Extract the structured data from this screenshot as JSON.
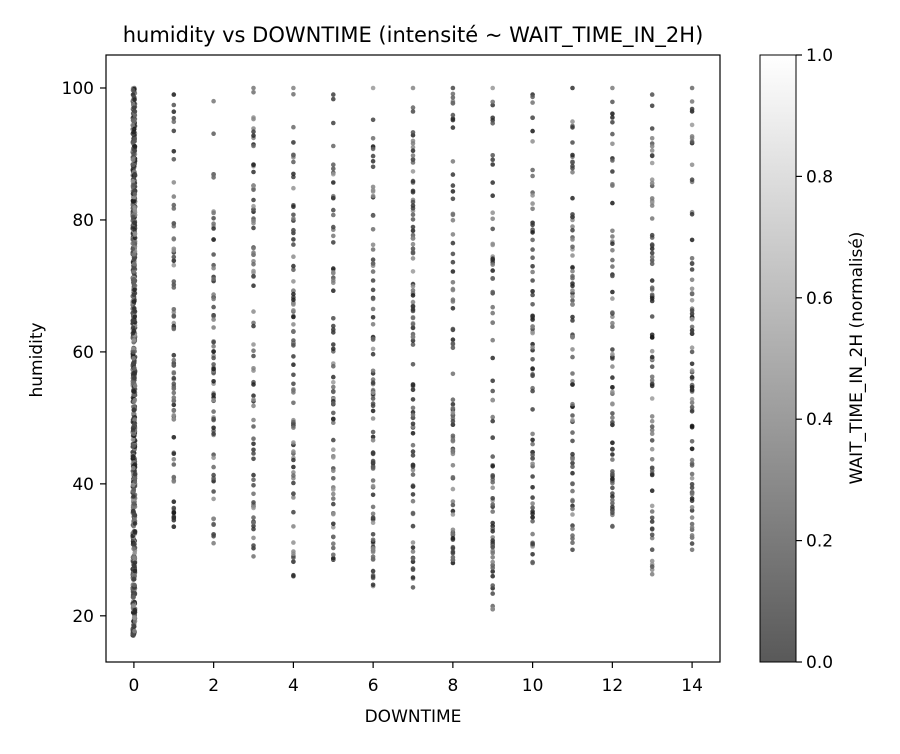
{
  "chart_data": {
    "type": "scatter",
    "title": "humidity vs DOWNTIME (intensité ~ WAIT_TIME_IN_2H)",
    "xlabel": "DOWNTIME",
    "ylabel": "humidity",
    "xlim": [
      -0.7,
      14.7
    ],
    "ylim": [
      13,
      105
    ],
    "xticks": [
      "0",
      "2",
      "4",
      "6",
      "8",
      "10",
      "12",
      "14"
    ],
    "yticks": [
      "20",
      "40",
      "60",
      "80",
      "100"
    ],
    "grid": false,
    "point_color_map": "grayscale (#555555 → #ffffff)",
    "colorbar": {
      "label": "WAIT_TIME_IN_2H (normalisé)",
      "range": [
        0.0,
        1.0
      ],
      "ticks": [
        "0.0",
        "0.2",
        "0.4",
        "0.6",
        "0.8",
        "1.0"
      ]
    },
    "series": [
      {
        "x": 0,
        "y_min": 17,
        "y_max": 100,
        "points": 900
      },
      {
        "x": 1,
        "y_min": 33.5,
        "y_max": 99,
        "points": 80
      },
      {
        "x": 2,
        "y_min": 31,
        "y_max": 98,
        "points": 75
      },
      {
        "x": 3,
        "y_min": 29,
        "y_max": 100,
        "points": 80
      },
      {
        "x": 4,
        "y_min": 26,
        "y_max": 100,
        "points": 85
      },
      {
        "x": 5,
        "y_min": 28.5,
        "y_max": 99,
        "points": 75
      },
      {
        "x": 6,
        "y_min": 24.5,
        "y_max": 100,
        "points": 95
      },
      {
        "x": 7,
        "y_min": 24.3,
        "y_max": 100,
        "points": 100
      },
      {
        "x": 8,
        "y_min": 28,
        "y_max": 100,
        "points": 80
      },
      {
        "x": 9,
        "y_min": 21,
        "y_max": 100,
        "points": 80
      },
      {
        "x": 10,
        "y_min": 28,
        "y_max": 99,
        "points": 75
      },
      {
        "x": 11,
        "y_min": 30,
        "y_max": 100,
        "points": 80
      },
      {
        "x": 12,
        "y_min": 33.5,
        "y_max": 100,
        "points": 75
      },
      {
        "x": 13,
        "y_min": 26.3,
        "y_max": 99,
        "points": 80
      },
      {
        "x": 14,
        "y_min": 30,
        "y_max": 100,
        "points": 85
      }
    ]
  }
}
